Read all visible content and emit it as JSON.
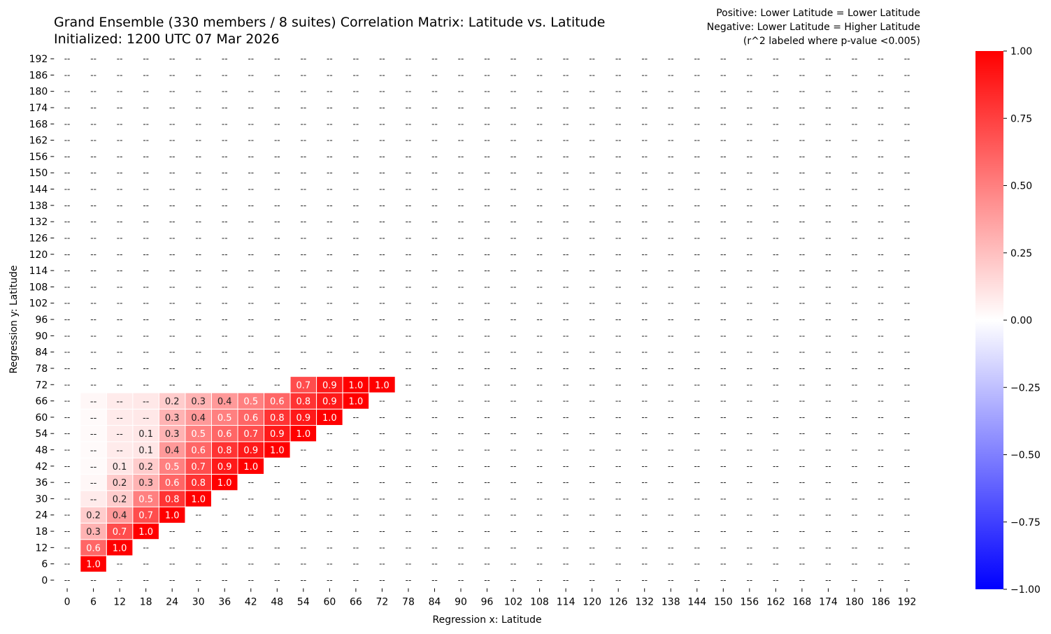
{
  "chart_data": {
    "type": "heatmap",
    "title": "Grand Ensemble (330 members / 8 suites) Correlation Matrix: Latitude vs. Latitude",
    "subtitle": "Initialized: 1200 UTC 07 Mar 2026",
    "annotation": [
      "Positive: Lower Latitude = Lower Latitude",
      "Negative: Lower Latitude = Higher Latitude",
      "(r^2 labeled where p-value <0.005)"
    ],
    "xlabel": "Regression x: Latitude",
    "ylabel": "Regression y: Latitude",
    "x": [
      0,
      6,
      12,
      18,
      24,
      30,
      36,
      42,
      48,
      54,
      60,
      66,
      72,
      78,
      84,
      90,
      96,
      102,
      108,
      114,
      120,
      126,
      132,
      138,
      144,
      150,
      156,
      162,
      168,
      174,
      180,
      186,
      192
    ],
    "y": [
      0,
      6,
      12,
      18,
      24,
      30,
      36,
      42,
      48,
      54,
      60,
      66,
      72,
      78,
      84,
      90,
      96,
      102,
      108,
      114,
      120,
      126,
      132,
      138,
      144,
      150,
      156,
      162,
      168,
      174,
      180,
      186,
      192
    ],
    "missing_label": "--",
    "colorbar": {
      "range": [
        -1,
        1
      ],
      "ticks": [
        "1.00",
        "0.75",
        "0.50",
        "0.25",
        "0.00",
        "−0.25",
        "−0.50",
        "−0.75",
        "−1.00"
      ],
      "colormap": "bwr",
      "neg_color": "#0000ff",
      "mid_color": "#ffffff",
      "pos_color": "#ff0000"
    },
    "cells": [
      {
        "x": 54,
        "y": 72,
        "value": 0.7,
        "label": "0.7"
      },
      {
        "x": 60,
        "y": 72,
        "value": 0.9,
        "label": "0.9"
      },
      {
        "x": 66,
        "y": 72,
        "value": 1.0,
        "label": "1.0"
      },
      {
        "x": 72,
        "y": 72,
        "value": 1.0,
        "label": "1.0"
      },
      {
        "x": 6,
        "y": 66,
        "value": 0.03,
        "label": "--"
      },
      {
        "x": 12,
        "y": 66,
        "value": 0.08,
        "label": "--"
      },
      {
        "x": 18,
        "y": 66,
        "value": 0.09,
        "label": "--"
      },
      {
        "x": 24,
        "y": 66,
        "value": 0.2,
        "label": "0.2"
      },
      {
        "x": 30,
        "y": 66,
        "value": 0.3,
        "label": "0.3"
      },
      {
        "x": 36,
        "y": 66,
        "value": 0.4,
        "label": "0.4"
      },
      {
        "x": 42,
        "y": 66,
        "value": 0.5,
        "label": "0.5"
      },
      {
        "x": 48,
        "y": 66,
        "value": 0.6,
        "label": "0.6"
      },
      {
        "x": 54,
        "y": 66,
        "value": 0.8,
        "label": "0.8"
      },
      {
        "x": 60,
        "y": 66,
        "value": 0.9,
        "label": "0.9"
      },
      {
        "x": 66,
        "y": 66,
        "value": 1.0,
        "label": "1.0"
      },
      {
        "x": 6,
        "y": 60,
        "value": 0.02,
        "label": "--"
      },
      {
        "x": 12,
        "y": 60,
        "value": 0.08,
        "label": "--"
      },
      {
        "x": 18,
        "y": 60,
        "value": 0.09,
        "label": "--"
      },
      {
        "x": 24,
        "y": 60,
        "value": 0.3,
        "label": "0.3"
      },
      {
        "x": 30,
        "y": 60,
        "value": 0.4,
        "label": "0.4"
      },
      {
        "x": 36,
        "y": 60,
        "value": 0.5,
        "label": "0.5"
      },
      {
        "x": 42,
        "y": 60,
        "value": 0.6,
        "label": "0.6"
      },
      {
        "x": 48,
        "y": 60,
        "value": 0.8,
        "label": "0.8"
      },
      {
        "x": 54,
        "y": 60,
        "value": 0.9,
        "label": "0.9"
      },
      {
        "x": 60,
        "y": 60,
        "value": 1.0,
        "label": "1.0"
      },
      {
        "x": 6,
        "y": 54,
        "value": 0.02,
        "label": "--"
      },
      {
        "x": 12,
        "y": 54,
        "value": 0.08,
        "label": "--"
      },
      {
        "x": 18,
        "y": 54,
        "value": 0.1,
        "label": "0.1"
      },
      {
        "x": 24,
        "y": 54,
        "value": 0.3,
        "label": "0.3"
      },
      {
        "x": 30,
        "y": 54,
        "value": 0.5,
        "label": "0.5"
      },
      {
        "x": 36,
        "y": 54,
        "value": 0.6,
        "label": "0.6"
      },
      {
        "x": 42,
        "y": 54,
        "value": 0.7,
        "label": "0.7"
      },
      {
        "x": 48,
        "y": 54,
        "value": 0.9,
        "label": "0.9"
      },
      {
        "x": 54,
        "y": 54,
        "value": 1.0,
        "label": "1.0"
      },
      {
        "x": 6,
        "y": 48,
        "value": 0.02,
        "label": "--"
      },
      {
        "x": 12,
        "y": 48,
        "value": 0.08,
        "label": "--"
      },
      {
        "x": 18,
        "y": 48,
        "value": 0.1,
        "label": "0.1"
      },
      {
        "x": 24,
        "y": 48,
        "value": 0.4,
        "label": "0.4"
      },
      {
        "x": 30,
        "y": 48,
        "value": 0.6,
        "label": "0.6"
      },
      {
        "x": 36,
        "y": 48,
        "value": 0.8,
        "label": "0.8"
      },
      {
        "x": 42,
        "y": 48,
        "value": 0.9,
        "label": "0.9"
      },
      {
        "x": 48,
        "y": 48,
        "value": 1.0,
        "label": "1.0"
      },
      {
        "x": 6,
        "y": 42,
        "value": 0.02,
        "label": "--"
      },
      {
        "x": 12,
        "y": 42,
        "value": 0.1,
        "label": "0.1"
      },
      {
        "x": 18,
        "y": 42,
        "value": 0.2,
        "label": "0.2"
      },
      {
        "x": 24,
        "y": 42,
        "value": 0.5,
        "label": "0.5"
      },
      {
        "x": 30,
        "y": 42,
        "value": 0.7,
        "label": "0.7"
      },
      {
        "x": 36,
        "y": 42,
        "value": 0.9,
        "label": "0.9"
      },
      {
        "x": 42,
        "y": 42,
        "value": 1.0,
        "label": "1.0"
      },
      {
        "x": 6,
        "y": 36,
        "value": 0.03,
        "label": "--"
      },
      {
        "x": 12,
        "y": 36,
        "value": 0.2,
        "label": "0.2"
      },
      {
        "x": 18,
        "y": 36,
        "value": 0.3,
        "label": "0.3"
      },
      {
        "x": 24,
        "y": 36,
        "value": 0.6,
        "label": "0.6"
      },
      {
        "x": 30,
        "y": 36,
        "value": 0.8,
        "label": "0.8"
      },
      {
        "x": 36,
        "y": 36,
        "value": 1.0,
        "label": "1.0"
      },
      {
        "x": 6,
        "y": 30,
        "value": 0.08,
        "label": "--"
      },
      {
        "x": 12,
        "y": 30,
        "value": 0.2,
        "label": "0.2"
      },
      {
        "x": 18,
        "y": 30,
        "value": 0.5,
        "label": "0.5"
      },
      {
        "x": 24,
        "y": 30,
        "value": 0.8,
        "label": "0.8"
      },
      {
        "x": 30,
        "y": 30,
        "value": 1.0,
        "label": "1.0"
      },
      {
        "x": 6,
        "y": 24,
        "value": 0.2,
        "label": "0.2"
      },
      {
        "x": 12,
        "y": 24,
        "value": 0.4,
        "label": "0.4"
      },
      {
        "x": 18,
        "y": 24,
        "value": 0.7,
        "label": "0.7"
      },
      {
        "x": 24,
        "y": 24,
        "value": 1.0,
        "label": "1.0"
      },
      {
        "x": 6,
        "y": 18,
        "value": 0.3,
        "label": "0.3"
      },
      {
        "x": 12,
        "y": 18,
        "value": 0.7,
        "label": "0.7"
      },
      {
        "x": 18,
        "y": 18,
        "value": 1.0,
        "label": "1.0"
      },
      {
        "x": 6,
        "y": 12,
        "value": 0.6,
        "label": "0.6"
      },
      {
        "x": 12,
        "y": 12,
        "value": 1.0,
        "label": "1.0"
      },
      {
        "x": 6,
        "y": 6,
        "value": 1.0,
        "label": "1.0"
      }
    ]
  }
}
